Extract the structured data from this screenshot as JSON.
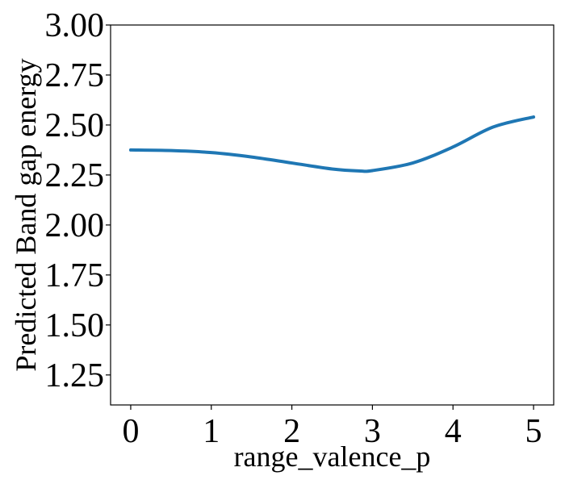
{
  "chart_data": {
    "type": "line",
    "xlabel": "range_valence_p",
    "ylabel": "Predicted Band gap energy",
    "xlim": [
      -0.25,
      5.25
    ],
    "ylim": [
      1.1,
      3.0
    ],
    "xticks": [
      0,
      1,
      2,
      3,
      4,
      5
    ],
    "xtick_labels": [
      "0",
      "1",
      "2",
      "3",
      "4",
      "5"
    ],
    "yticks": [
      1.25,
      1.5,
      1.75,
      2.0,
      2.25,
      2.5,
      2.75,
      3.0
    ],
    "ytick_labels": [
      "1.25",
      "1.50",
      "1.75",
      "2.00",
      "2.25",
      "2.50",
      "2.75",
      "3.00"
    ],
    "grid": false,
    "series": [
      {
        "color": "#1f77b4",
        "x": [
          0,
          0.5,
          1,
          1.5,
          2,
          2.5,
          2.85,
          3,
          3.5,
          4,
          4.5,
          5
        ],
        "y": [
          2.375,
          2.372,
          2.362,
          2.34,
          2.31,
          2.28,
          2.27,
          2.272,
          2.31,
          2.39,
          2.49,
          2.54
        ]
      }
    ]
  }
}
